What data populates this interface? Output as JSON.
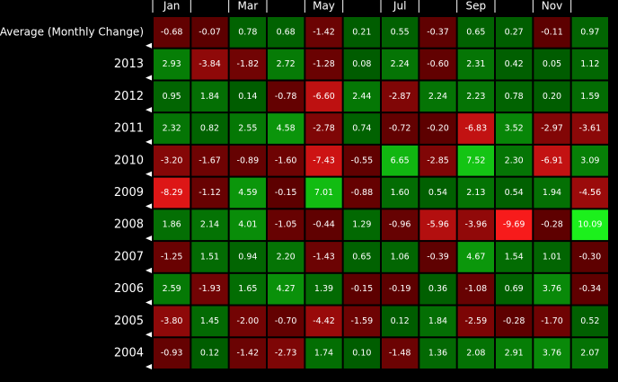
{
  "chart_data": {
    "type": "heatmap",
    "categories": [
      "Jan",
      null,
      "Mar",
      null,
      "May",
      null,
      "Jul",
      null,
      "Sep",
      null,
      "Nov",
      null
    ],
    "color_scale": {
      "negative": [
        "#5c0000",
        "#ff1c1c"
      ],
      "positive": [
        "#005c00",
        "#1cf01c"
      ]
    },
    "series": [
      {
        "name": "Average (Monthly Change)",
        "values": [
          -0.68,
          -0.07,
          0.78,
          0.68,
          -1.42,
          0.21,
          0.55,
          -0.37,
          0.65,
          0.27,
          -0.11,
          0.97
        ],
        "value_labels": [
          "-0.68",
          "-0.07",
          "0.78",
          "0.68",
          "-1.42",
          "0.21",
          "0.55",
          "-0.37",
          "0.65",
          "0.27",
          "-0.11",
          "0.97"
        ]
      },
      {
        "name": "2013",
        "values": [
          2.93,
          -3.84,
          -1.82,
          2.72,
          -1.28,
          0.08,
          2.24,
          -0.6,
          2.31,
          0.42,
          0.05,
          1.12
        ],
        "value_labels": [
          "2.93",
          "-3.84",
          "-1.82",
          "2.72",
          "-1.28",
          "0.08",
          "2.24",
          "-0.60",
          "2.31",
          "0.42",
          "0.05",
          "1.12"
        ]
      },
      {
        "name": "2012",
        "values": [
          0.95,
          1.84,
          0.14,
          -0.78,
          -6.6,
          2.44,
          -2.87,
          2.24,
          2.23,
          0.78,
          0.2,
          1.59
        ],
        "value_labels": [
          "0.95",
          "1.84",
          "0.14",
          "-0.78",
          "-6.60",
          "2.44",
          "-2.87",
          "2.24",
          "2.23",
          "0.78",
          "0.20",
          "1.59"
        ]
      },
      {
        "name": "2011",
        "values": [
          2.32,
          0.82,
          2.55,
          4.58,
          -2.78,
          0.74,
          -0.72,
          -0.2,
          -6.83,
          3.52,
          -2.97,
          -3.61
        ],
        "value_labels": [
          "2.32",
          "0.82",
          "2.55",
          "4.58",
          "-2.78",
          "0.74",
          "-0.72",
          "-0.20",
          "-6.83",
          "3.52",
          "-2.97",
          "-3.61"
        ]
      },
      {
        "name": "2010",
        "values": [
          -3.2,
          -1.67,
          -0.89,
          -1.6,
          -7.43,
          -0.55,
          6.65,
          -2.85,
          7.52,
          2.3,
          -6.91,
          3.09
        ],
        "value_labels": [
          "-3.20",
          "-1.67",
          "-0.89",
          "-1.60",
          "-7.43",
          "-0.55",
          "6.65",
          "-2.85",
          "7.52",
          "2.30",
          "-6.91",
          "3.09"
        ]
      },
      {
        "name": "2009",
        "values": [
          -8.29,
          -1.12,
          4.59,
          -0.15,
          7.01,
          -0.88,
          1.6,
          0.54,
          2.13,
          0.54,
          1.94,
          -4.56
        ],
        "value_labels": [
          "-8.29",
          "-1.12",
          "4.59",
          "-0.15",
          "7.01",
          "-0.88",
          "1.60",
          "0.54",
          "2.13",
          "0.54",
          "1.94",
          "-4.56"
        ]
      },
      {
        "name": "2008",
        "values": [
          1.86,
          2.14,
          4.01,
          -1.05,
          -0.44,
          1.29,
          -0.96,
          -5.96,
          -3.96,
          -9.69,
          -0.28,
          10.09
        ],
        "value_labels": [
          "1.86",
          "2.14",
          "4.01",
          "-1.05",
          "-0.44",
          "1.29",
          "-0.96",
          "-5.96",
          "-3.96",
          "-9.69",
          "-0.28",
          "10.09"
        ]
      },
      {
        "name": "2007",
        "values": [
          -1.25,
          1.51,
          0.94,
          2.2,
          -1.43,
          0.65,
          1.06,
          -0.39,
          4.67,
          1.54,
          1.01,
          -0.3
        ],
        "value_labels": [
          "-1.25",
          "1.51",
          "0.94",
          "2.20",
          "-1.43",
          "0.65",
          "1.06",
          "-0.39",
          "4.67",
          "1.54",
          "1.01",
          "-0.30"
        ]
      },
      {
        "name": "2006",
        "values": [
          2.59,
          -1.93,
          1.65,
          4.27,
          1.39,
          -0.15,
          -0.19,
          0.36,
          -1.08,
          0.69,
          3.76,
          -0.34
        ],
        "value_labels": [
          "2.59",
          "-1.93",
          "1.65",
          "4.27",
          "1.39",
          "-0.15",
          "-0.19",
          "0.36",
          "-1.08",
          "0.69",
          "3.76",
          "-0.34"
        ]
      },
      {
        "name": "2005",
        "values": [
          -3.8,
          1.45,
          -2.0,
          -0.7,
          -4.42,
          -1.59,
          0.12,
          1.84,
          -2.59,
          -0.28,
          -1.7,
          0.52
        ],
        "value_labels": [
          "-3.80",
          "1.45",
          "-2.00",
          "-0.70",
          "-4.42",
          "-1.59",
          "0.12",
          "1.84",
          "-2.59",
          "-0.28",
          "-1.70",
          "0.52"
        ]
      },
      {
        "name": "2004",
        "values": [
          -0.93,
          0.12,
          -1.42,
          -2.73,
          1.74,
          0.1,
          -1.48,
          1.36,
          2.08,
          2.91,
          3.76,
          2.07
        ],
        "value_labels": [
          "-0.93",
          "0.12",
          "-1.42",
          "-2.73",
          "1.74",
          "0.10",
          "-1.48",
          "1.36",
          "2.08",
          "2.91",
          "3.76",
          "2.07"
        ]
      }
    ]
  }
}
